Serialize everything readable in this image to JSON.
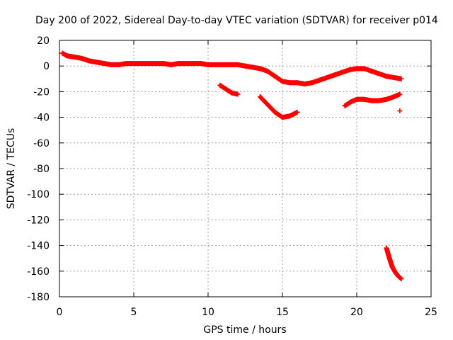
{
  "chart_data": {
    "type": "scatter",
    "title": "Day 200 of 2022, Sidereal Day-to-day VTEC variation (SDTVAR) for receiver p014",
    "xlabel": "GPS time / hours",
    "ylabel": "SDTVAR / TECUs",
    "xlim": [
      0,
      25
    ],
    "ylim": [
      -180,
      20
    ],
    "xticks": [
      0,
      5,
      10,
      15,
      20,
      25
    ],
    "yticks": [
      20,
      0,
      -20,
      -40,
      -60,
      -80,
      -100,
      -120,
      -140,
      -160,
      -180
    ],
    "grid": true,
    "legend": "none",
    "marker": "+",
    "color": "#ff0000",
    "series": [
      {
        "name": "main-arc",
        "x": [
          0.2,
          0.5,
          1.0,
          1.5,
          2.0,
          2.5,
          3.0,
          3.5,
          4.0,
          4.5,
          5.0,
          5.5,
          6.0,
          6.5,
          7.0,
          7.5,
          8.0,
          8.5,
          9.0,
          9.5,
          10.0,
          10.5,
          11.0,
          11.5,
          12.0,
          12.5,
          13.0,
          13.5,
          14.0,
          14.5,
          15.0,
          15.5,
          16.0,
          16.5,
          17.0,
          17.5,
          18.0,
          18.5,
          19.0,
          19.5,
          20.0,
          20.5,
          21.0,
          21.5,
          22.0,
          22.5,
          23.0
        ],
        "y": [
          10,
          8,
          7,
          6,
          4,
          3,
          2,
          1,
          1,
          2,
          2,
          2,
          2,
          2,
          2,
          1,
          2,
          2,
          2,
          2,
          1,
          1,
          1,
          1,
          1,
          0,
          -1,
          -2,
          -4,
          -8,
          -12,
          -13,
          -13,
          -14,
          -13,
          -11,
          -9,
          -7,
          -5,
          -3,
          -2,
          -2,
          -4,
          -6,
          -8,
          -9,
          -10
        ]
      },
      {
        "name": "arc-11h",
        "x": [
          10.8,
          11.2,
          11.6,
          12.0
        ],
        "y": [
          -15,
          -18,
          -21,
          -22
        ]
      },
      {
        "name": "arc-15h",
        "x": [
          13.5,
          14.0,
          14.5,
          15.0,
          15.5,
          16.0
        ],
        "y": [
          -24,
          -30,
          -36,
          -40,
          -39,
          -36
        ]
      },
      {
        "name": "arc-20h",
        "x": [
          19.2,
          19.6,
          20.0,
          20.5,
          21.0,
          21.5,
          22.0,
          22.5,
          22.9
        ],
        "y": [
          -31,
          -28,
          -26,
          -26,
          -27,
          -27,
          -26,
          -24,
          -22
        ]
      },
      {
        "name": "point-23h",
        "x": [
          22.9
        ],
        "y": [
          -35
        ]
      },
      {
        "name": "arc-22h-steep",
        "x": [
          22.0,
          22.2,
          22.4,
          22.6,
          22.8,
          23.0
        ],
        "y": [
          -142,
          -150,
          -157,
          -161,
          -164,
          -166
        ]
      }
    ]
  }
}
